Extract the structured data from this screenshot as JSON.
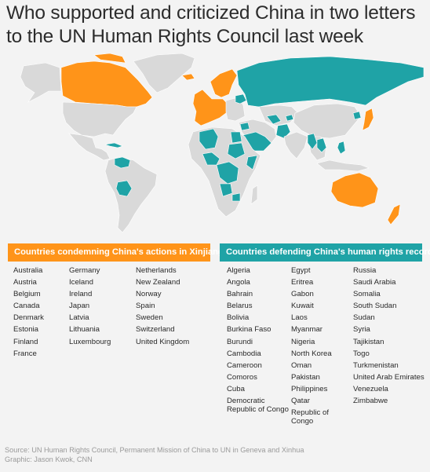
{
  "title": "Who supported and criticized China in two letters to the UN Human Rights Council last week",
  "colors": {
    "condemning": "#ff9419",
    "defending": "#1fa3a6",
    "other_land": "#d9d9d9",
    "ocean": "#ffffff"
  },
  "map": {
    "type": "world choropleth"
  },
  "legend": {
    "condemning_header": "Countries condemning China's actions in Xinjiang",
    "defending_header": "Countries defending China's human rights record"
  },
  "condemning_columns": [
    [
      "Australia",
      "Austria",
      "Belgium",
      "Canada",
      "Denmark",
      "Estonia",
      "Finland",
      "France"
    ],
    [
      "Germany",
      "Iceland",
      "Ireland",
      "Japan",
      "Latvia",
      "Lithuania",
      "Luxembourg"
    ],
    [
      "Netherlands",
      "New Zealand",
      "Norway",
      "Spain",
      "Sweden",
      "Switzerland",
      "United Kingdom"
    ]
  ],
  "defending_columns": [
    [
      "Algeria",
      "Angola",
      "Bahrain",
      "Belarus",
      "Bolivia",
      "Burkina Faso",
      "Burundi",
      "Cambodia",
      "Cameroon",
      "Comoros",
      "Cuba",
      "Democratic Republic of Congo"
    ],
    [
      "Egypt",
      "Eritrea",
      "Gabon",
      "Kuwait",
      "Laos",
      "Myanmar",
      "Nigeria",
      "North Korea",
      "Oman",
      "Pakistan",
      "Philippines",
      "Qatar",
      "Republic of Congo"
    ],
    [
      "Russia",
      "Saudi Arabia",
      "Somalia",
      "South Sudan",
      "Sudan",
      "Syria",
      "Tajikistan",
      "Togo",
      "Turkmenistan",
      "United Arab Emirates",
      "Venezuela",
      "Zimbabwe"
    ]
  ],
  "footer": {
    "source": "Source: UN Human Rights Council, Permanent Mission of China to UN in Geneva and Xinhua",
    "credit": "Graphic: Jason Kwok, CNN"
  }
}
